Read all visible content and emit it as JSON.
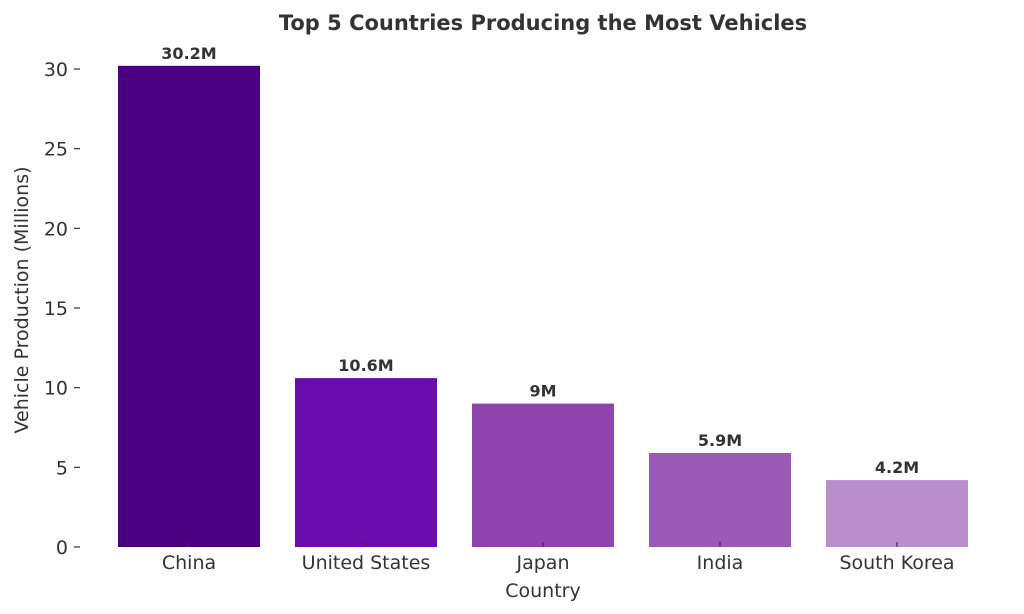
{
  "chart_data": {
    "type": "bar",
    "title": "Top 5 Countries Producing the Most Vehicles",
    "xlabel": "Country",
    "ylabel": "Vehicle Production (Millions)",
    "categories": [
      "China",
      "United States",
      "Japan",
      "India",
      "South Korea"
    ],
    "values": [
      30.2,
      10.6,
      9,
      5.9,
      4.2
    ],
    "data_labels": [
      "30.2M",
      "10.6M",
      "9M",
      "5.9M",
      "4.2M"
    ],
    "colors": [
      "#4b0082",
      "#6a0dad",
      "#8e44ad",
      "#9b59b6",
      "#bb8fce"
    ],
    "ylim": [
      0,
      30
    ],
    "yticks": [
      0,
      5,
      10,
      15,
      20,
      25,
      30
    ],
    "grid": false,
    "legend": "none"
  }
}
